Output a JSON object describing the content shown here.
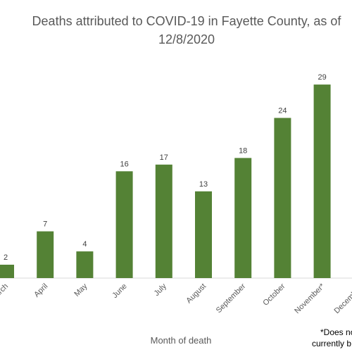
{
  "chart_data": {
    "type": "bar",
    "title_line1": "Deaths attributed to COVID-19 in Fayette County, as of",
    "title_line2": "12/8/2020",
    "xlabel": "Month of death",
    "ylabel": "",
    "categories": [
      "March",
      "April",
      "May",
      "June",
      "July",
      "August",
      "September",
      "October",
      "November*",
      "December*"
    ],
    "values": [
      2,
      7,
      4,
      16,
      17,
      13,
      18,
      24,
      29,
      null
    ],
    "data_labels": [
      "2",
      "7",
      "4",
      "16",
      "17",
      "13",
      "18",
      "24",
      "29",
      ""
    ],
    "ylim": [
      0,
      30
    ],
    "grid": false,
    "legend": "none",
    "bar_color": "#548235",
    "note_line1": "*Does no",
    "note_line2": "currently b"
  }
}
